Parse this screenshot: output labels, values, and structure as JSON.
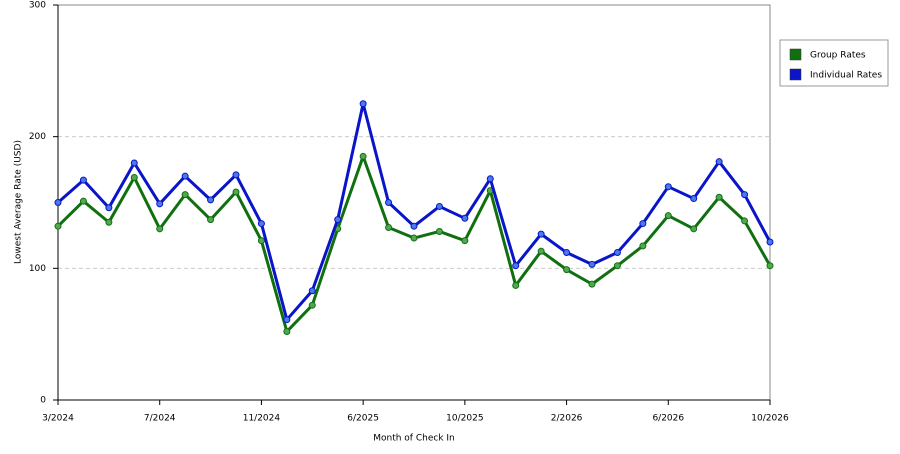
{
  "chart_data": {
    "type": "line",
    "x_label": "Month of Check In",
    "y_label": "Lowest Average Rate (USD)",
    "categories": [
      "3/2024",
      null,
      null,
      null,
      "7/2024",
      null,
      null,
      null,
      "11/2024",
      null,
      null,
      null,
      "6/2025",
      null,
      null,
      null,
      "10/2025",
      null,
      null,
      null,
      "2/2026",
      null,
      null,
      null,
      "6/2026",
      null,
      null,
      null,
      "10/2026"
    ],
    "series": [
      {
        "name": "Group Rates",
        "color": "#107010",
        "marker_color": "#52a852",
        "values": [
          132,
          151,
          135,
          169,
          130,
          156,
          137,
          158,
          121,
          52,
          72,
          130,
          185,
          131,
          123,
          128,
          121,
          159,
          87,
          113,
          99,
          88,
          102,
          117,
          140,
          130,
          154,
          136,
          102
        ]
      },
      {
        "name": "Individual Rates",
        "color": "#0a14c8",
        "marker_color": "#4a7ae8",
        "values": [
          150,
          167,
          146,
          180,
          149,
          170,
          152,
          171,
          134,
          61,
          83,
          137,
          225,
          150,
          132,
          147,
          138,
          168,
          102,
          126,
          112,
          103,
          112,
          134,
          162,
          153,
          181,
          156,
          120
        ]
      }
    ],
    "ylim": [
      0,
      300
    ],
    "yticks": [
      0,
      100,
      200,
      300
    ],
    "grid": true
  }
}
